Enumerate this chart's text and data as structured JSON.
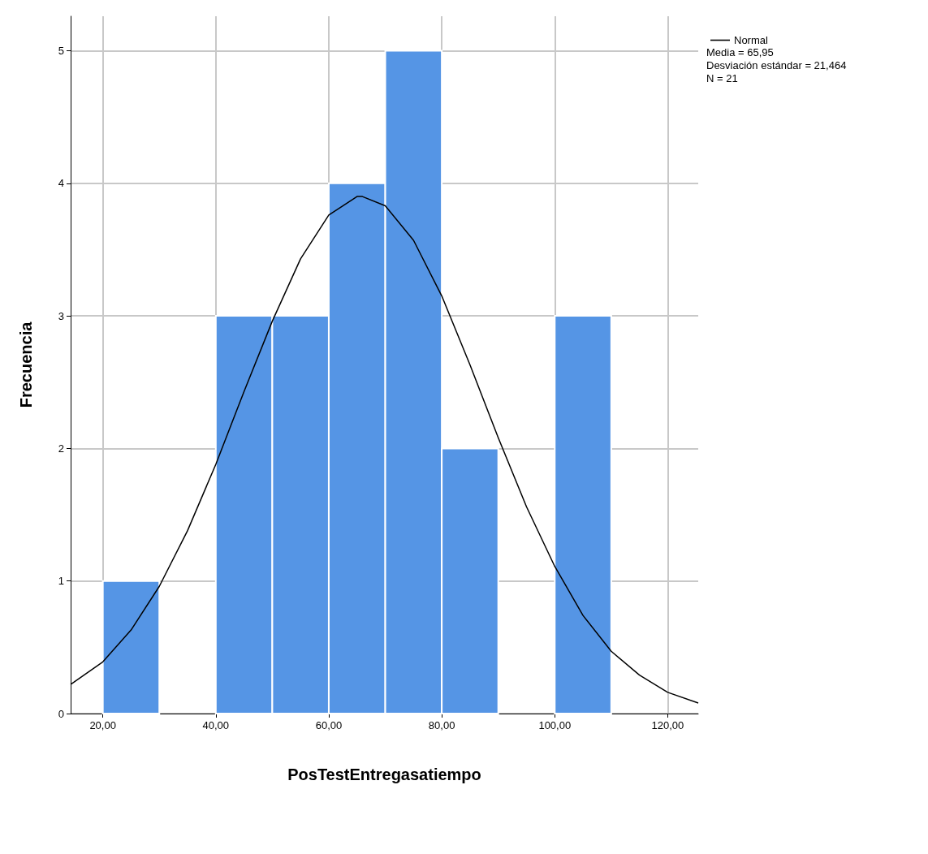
{
  "chart_data": {
    "type": "histogram",
    "xlabel": "PosTestEntregasatiempo",
    "ylabel": "Frecuencia",
    "bins": [
      20,
      30,
      40,
      50,
      60,
      70,
      80,
      90,
      100,
      110
    ],
    "values": [
      1,
      0,
      3,
      3,
      4,
      5,
      2,
      0,
      3
    ],
    "color": "#5595e5",
    "series": [
      {
        "name": "Normal",
        "type": "line",
        "color": "#000000",
        "x": [
          14.3,
          20,
          25,
          30,
          35,
          40,
          45,
          50,
          55,
          60,
          65,
          65.95,
          70,
          75,
          80,
          85,
          90,
          95,
          100,
          105,
          110,
          115,
          120,
          125.4
        ],
        "values": [
          0.22,
          0.39,
          0.63,
          0.96,
          1.38,
          1.88,
          2.43,
          2.96,
          3.43,
          3.76,
          3.9,
          3.9,
          3.83,
          3.57,
          3.15,
          2.63,
          2.08,
          1.56,
          1.11,
          0.74,
          0.47,
          0.29,
          0.16,
          0.08
        ]
      }
    ],
    "xlim": [
      14.3,
      125.4
    ],
    "ylim": [
      0,
      5.26
    ],
    "xticks": [
      {
        "value": 20,
        "label": "20,00"
      },
      {
        "value": 40,
        "label": "40,00"
      },
      {
        "value": 60,
        "label": "60,00"
      },
      {
        "value": 80,
        "label": "80,00"
      },
      {
        "value": 100,
        "label": "100,00"
      },
      {
        "value": 120,
        "label": "120,00"
      }
    ],
    "yticks": [
      0,
      1,
      2,
      3,
      4,
      5
    ],
    "grid": true,
    "legend": "top right",
    "annotations": [
      "Media = 65,95",
      "Desviación estándar = 21,464",
      "N = 21"
    ]
  }
}
